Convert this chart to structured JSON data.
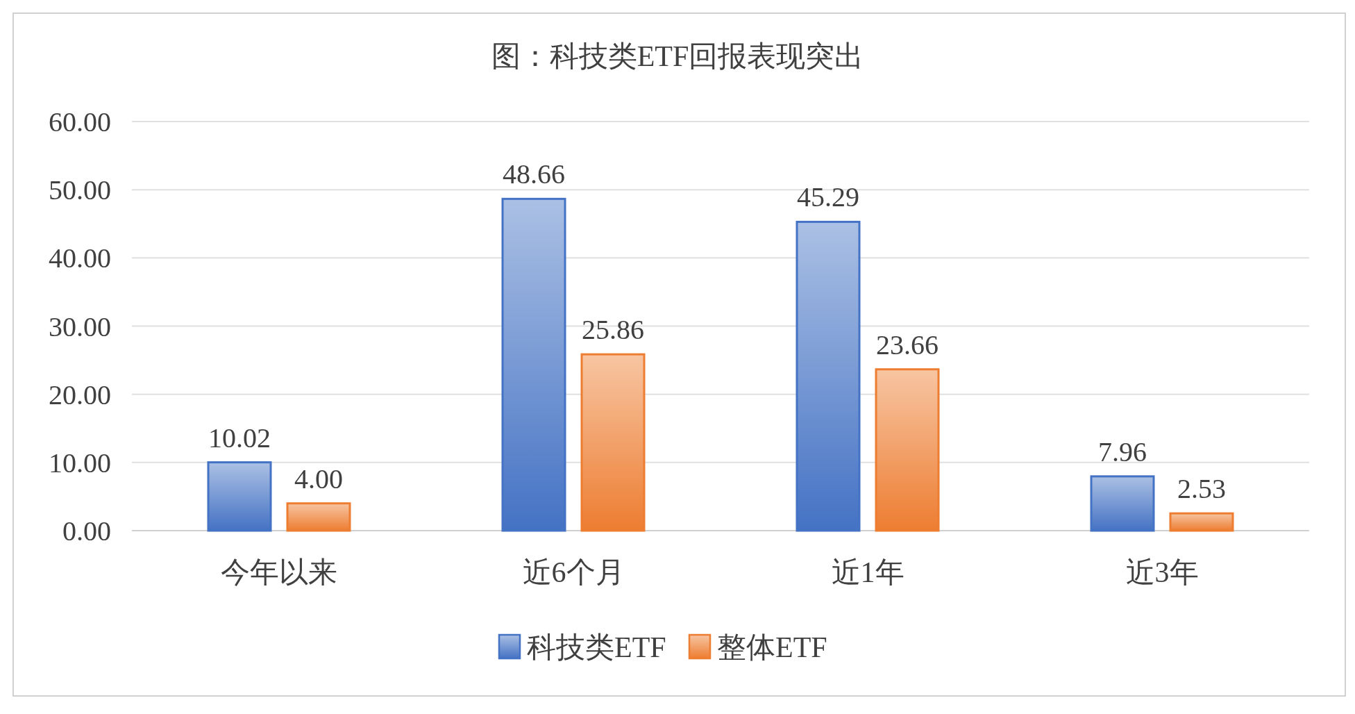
{
  "chart_data": {
    "type": "bar",
    "title": "图：科技类ETF回报表现突出",
    "categories": [
      "今年以来",
      "近6个月",
      "近1年",
      "近3年"
    ],
    "series": [
      {
        "name": "科技类ETF",
        "color": "#4472c4",
        "values": [
          10.02,
          48.66,
          45.29,
          7.96
        ],
        "value_labels": [
          "10.02",
          "48.66",
          "45.29",
          "7.96"
        ]
      },
      {
        "name": "整体ETF",
        "color": "#ed7d31",
        "values": [
          4.0,
          25.86,
          23.66,
          2.53
        ],
        "value_labels": [
          "4.00",
          "25.86",
          "23.66",
          "2.53"
        ]
      }
    ],
    "ylim": [
      0,
      60
    ],
    "yticks": [
      {
        "value": 0,
        "label": "0.00"
      },
      {
        "value": 10,
        "label": "10.00"
      },
      {
        "value": 20,
        "label": "20.00"
      },
      {
        "value": 30,
        "label": "30.00"
      },
      {
        "value": 40,
        "label": "40.00"
      },
      {
        "value": 50,
        "label": "50.00"
      },
      {
        "value": 60,
        "label": "60.00"
      }
    ],
    "grid": "y",
    "legend": "bottom"
  }
}
